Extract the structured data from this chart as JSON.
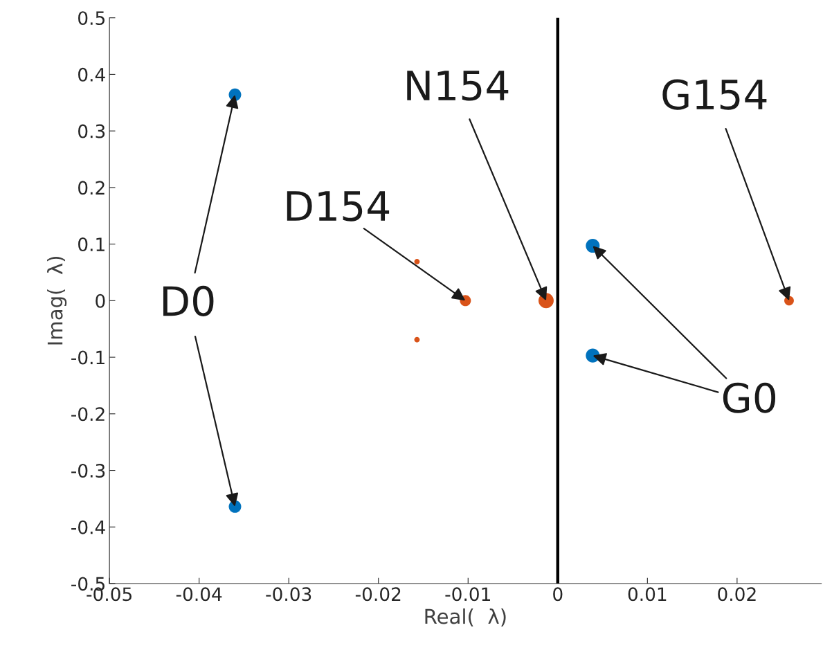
{
  "chart_data": {
    "type": "bubble",
    "xlabel": "Real(  λ)",
    "ylabel": "Imag(  λ)",
    "xlim": [
      -0.05,
      0.0294
    ],
    "xticks": [
      -0.05,
      -0.04,
      -0.03,
      -0.02,
      -0.01,
      0,
      0.01,
      0.02
    ],
    "ylim": [
      -0.5,
      0.5
    ],
    "yticks": [
      -0.5,
      -0.4,
      -0.3,
      -0.2,
      -0.1,
      0,
      0.1,
      0.2,
      0.3,
      0.4,
      0.5
    ],
    "grid": false,
    "legend": false,
    "series": [
      {
        "color": "#0072bd",
        "x": [
          -0.036,
          -0.036,
          0.0039,
          0.0039
        ],
        "values": [
          0.364,
          -0.364,
          0.097,
          -0.097
        ],
        "sizes": [
          0.67,
          0.67,
          0.83,
          0.83
        ]
      },
      {
        "color": "#d95319",
        "x": [
          -0.0157,
          -0.0157,
          -0.0103,
          -0.0013,
          0.0258
        ],
        "values": [
          0.069,
          -0.069,
          0,
          0,
          0
        ],
        "sizes": [
          0.13,
          0.13,
          0.53,
          1,
          0.4
        ]
      }
    ],
    "ref_lines": [
      {
        "axis": "x",
        "value": 0,
        "color": "#000000"
      }
    ],
    "annotations": [
      {
        "text": "D0",
        "x": -0.036,
        "y": 0.364
      },
      {
        "text": "D154",
        "x": -0.0103,
        "y": 0
      },
      {
        "text": "N154",
        "x": -0.0013,
        "y": 0
      },
      {
        "text": "G154",
        "x": 0.0258,
        "y": 0
      },
      {
        "text": "G0",
        "x": 0.0039,
        "y": 0.097
      }
    ]
  }
}
